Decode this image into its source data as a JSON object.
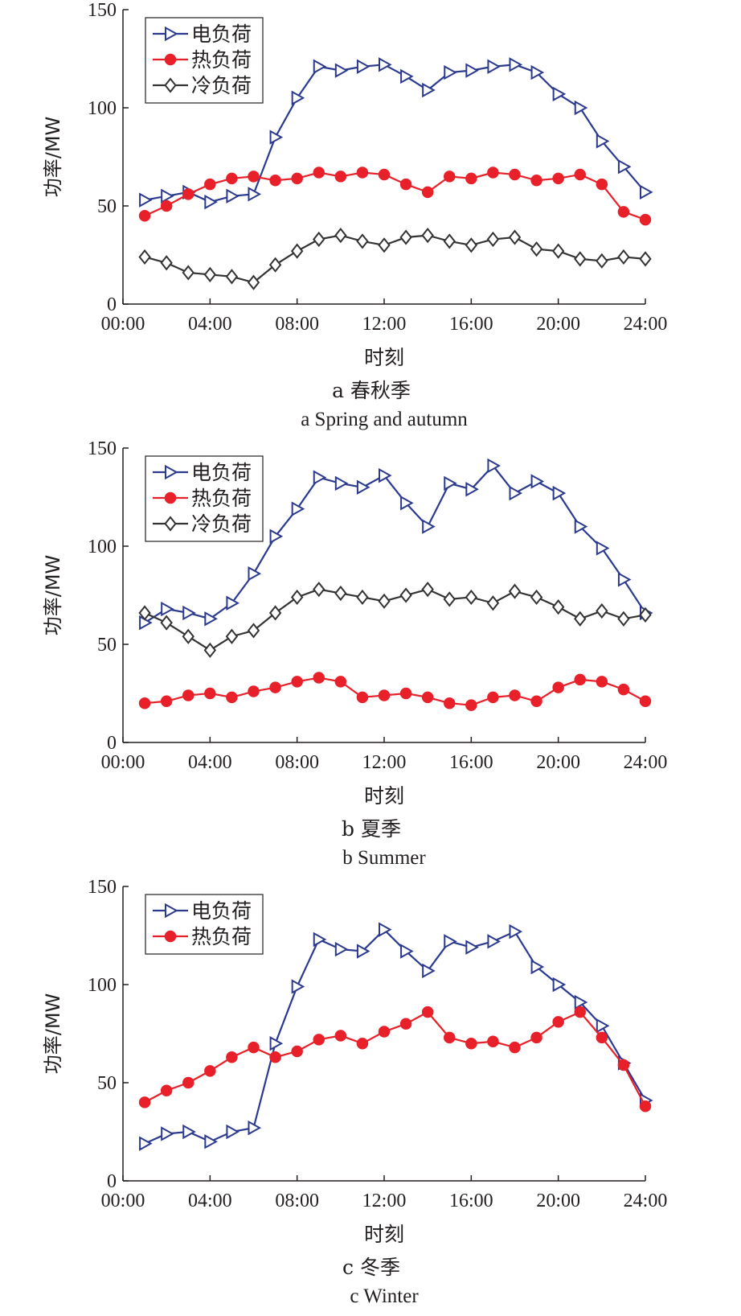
{
  "chart_data": [
    {
      "type": "line",
      "panel": "a",
      "caption_cn": "a  春秋季",
      "caption_en": "a  Spring and autumn",
      "xlabel": "时刻",
      "ylabel": "功率/MW",
      "x_ticks": [
        "00:00",
        "04:00",
        "08:00",
        "12:00",
        "16:00",
        "20:00",
        "24:00"
      ],
      "y_ticks": [
        "0",
        "50",
        "100",
        "150"
      ],
      "xlim": [
        0,
        24
      ],
      "ylim": [
        0,
        150
      ],
      "x": [
        1,
        2,
        3,
        4,
        5,
        6,
        7,
        8,
        9,
        10,
        11,
        12,
        13,
        14,
        15,
        16,
        17,
        18,
        19,
        20,
        21,
        22,
        23,
        24
      ],
      "legend_position": "top-left",
      "series": [
        {
          "name": "电负荷",
          "color": "#2b3a8f",
          "marker": "triangle-right",
          "values": [
            53,
            55,
            57,
            52,
            55,
            56,
            85,
            105,
            121,
            119,
            121,
            122,
            116,
            109,
            118,
            119,
            121,
            122,
            118,
            107,
            100,
            83,
            70,
            57
          ]
        },
        {
          "name": "热负荷",
          "color": "#e8202a",
          "marker": "circle",
          "values": [
            45,
            50,
            56,
            61,
            64,
            65,
            63,
            64,
            67,
            65,
            67,
            66,
            61,
            57,
            65,
            64,
            67,
            66,
            63,
            64,
            66,
            61,
            47,
            43
          ]
        },
        {
          "name": "冷负荷",
          "color": "#333333",
          "marker": "diamond",
          "values": [
            24,
            21,
            16,
            15,
            14,
            11,
            20,
            27,
            33,
            35,
            32,
            30,
            34,
            35,
            32,
            30,
            33,
            34,
            28,
            27,
            23,
            22,
            24,
            23
          ]
        }
      ]
    },
    {
      "type": "line",
      "panel": "b",
      "caption_cn": "b  夏季",
      "caption_en": "b  Summer",
      "xlabel": "时刻",
      "ylabel": "功率/MW",
      "x_ticks": [
        "00:00",
        "04:00",
        "08:00",
        "12:00",
        "16:00",
        "20:00",
        "24:00"
      ],
      "y_ticks": [
        "0",
        "50",
        "100",
        "150"
      ],
      "xlim": [
        0,
        24
      ],
      "ylim": [
        0,
        150
      ],
      "x": [
        1,
        2,
        3,
        4,
        5,
        6,
        7,
        8,
        9,
        10,
        11,
        12,
        13,
        14,
        15,
        16,
        17,
        18,
        19,
        20,
        21,
        22,
        23,
        24
      ],
      "legend_position": "top-left",
      "series": [
        {
          "name": "电负荷",
          "color": "#2b3a8f",
          "marker": "triangle-right",
          "values": [
            61,
            68,
            66,
            63,
            71,
            86,
            105,
            119,
            135,
            132,
            130,
            136,
            122,
            110,
            132,
            129,
            141,
            127,
            133,
            127,
            110,
            99,
            83,
            66
          ]
        },
        {
          "name": "热负荷",
          "color": "#e8202a",
          "marker": "circle",
          "values": [
            20,
            21,
            24,
            25,
            23,
            26,
            28,
            31,
            33,
            31,
            23,
            24,
            25,
            23,
            20,
            19,
            23,
            24,
            21,
            28,
            32,
            31,
            27,
            21
          ]
        },
        {
          "name": "冷负荷",
          "color": "#333333",
          "marker": "diamond",
          "values": [
            66,
            61,
            54,
            47,
            54,
            57,
            66,
            74,
            78,
            76,
            74,
            72,
            75,
            78,
            73,
            74,
            71,
            77,
            74,
            69,
            63,
            67,
            63,
            65
          ]
        }
      ]
    },
    {
      "type": "line",
      "panel": "c",
      "caption_cn": "c  冬季",
      "caption_en": "c  Winter",
      "xlabel": "时刻",
      "ylabel": "功率/MW",
      "x_ticks": [
        "00:00",
        "04:00",
        "08:00",
        "12:00",
        "16:00",
        "20:00",
        "24:00"
      ],
      "y_ticks": [
        "0",
        "50",
        "100",
        "150"
      ],
      "xlim": [
        0,
        24
      ],
      "ylim": [
        0,
        150
      ],
      "x": [
        1,
        2,
        3,
        4,
        5,
        6,
        7,
        8,
        9,
        10,
        11,
        12,
        13,
        14,
        15,
        16,
        17,
        18,
        19,
        20,
        21,
        22,
        23,
        24
      ],
      "legend_position": "top-left",
      "series": [
        {
          "name": "电负荷",
          "color": "#2b3a8f",
          "marker": "triangle-right",
          "values": [
            19,
            24,
            25,
            20,
            25,
            27,
            70,
            99,
            123,
            118,
            117,
            128,
            117,
            107,
            122,
            119,
            122,
            127,
            109,
            100,
            91,
            79,
            60,
            41
          ]
        },
        {
          "name": "热负荷",
          "color": "#e8202a",
          "marker": "circle",
          "values": [
            40,
            46,
            50,
            56,
            63,
            68,
            63,
            66,
            72,
            74,
            70,
            76,
            80,
            86,
            73,
            70,
            71,
            68,
            73,
            81,
            86,
            73,
            59,
            38
          ]
        }
      ]
    }
  ]
}
